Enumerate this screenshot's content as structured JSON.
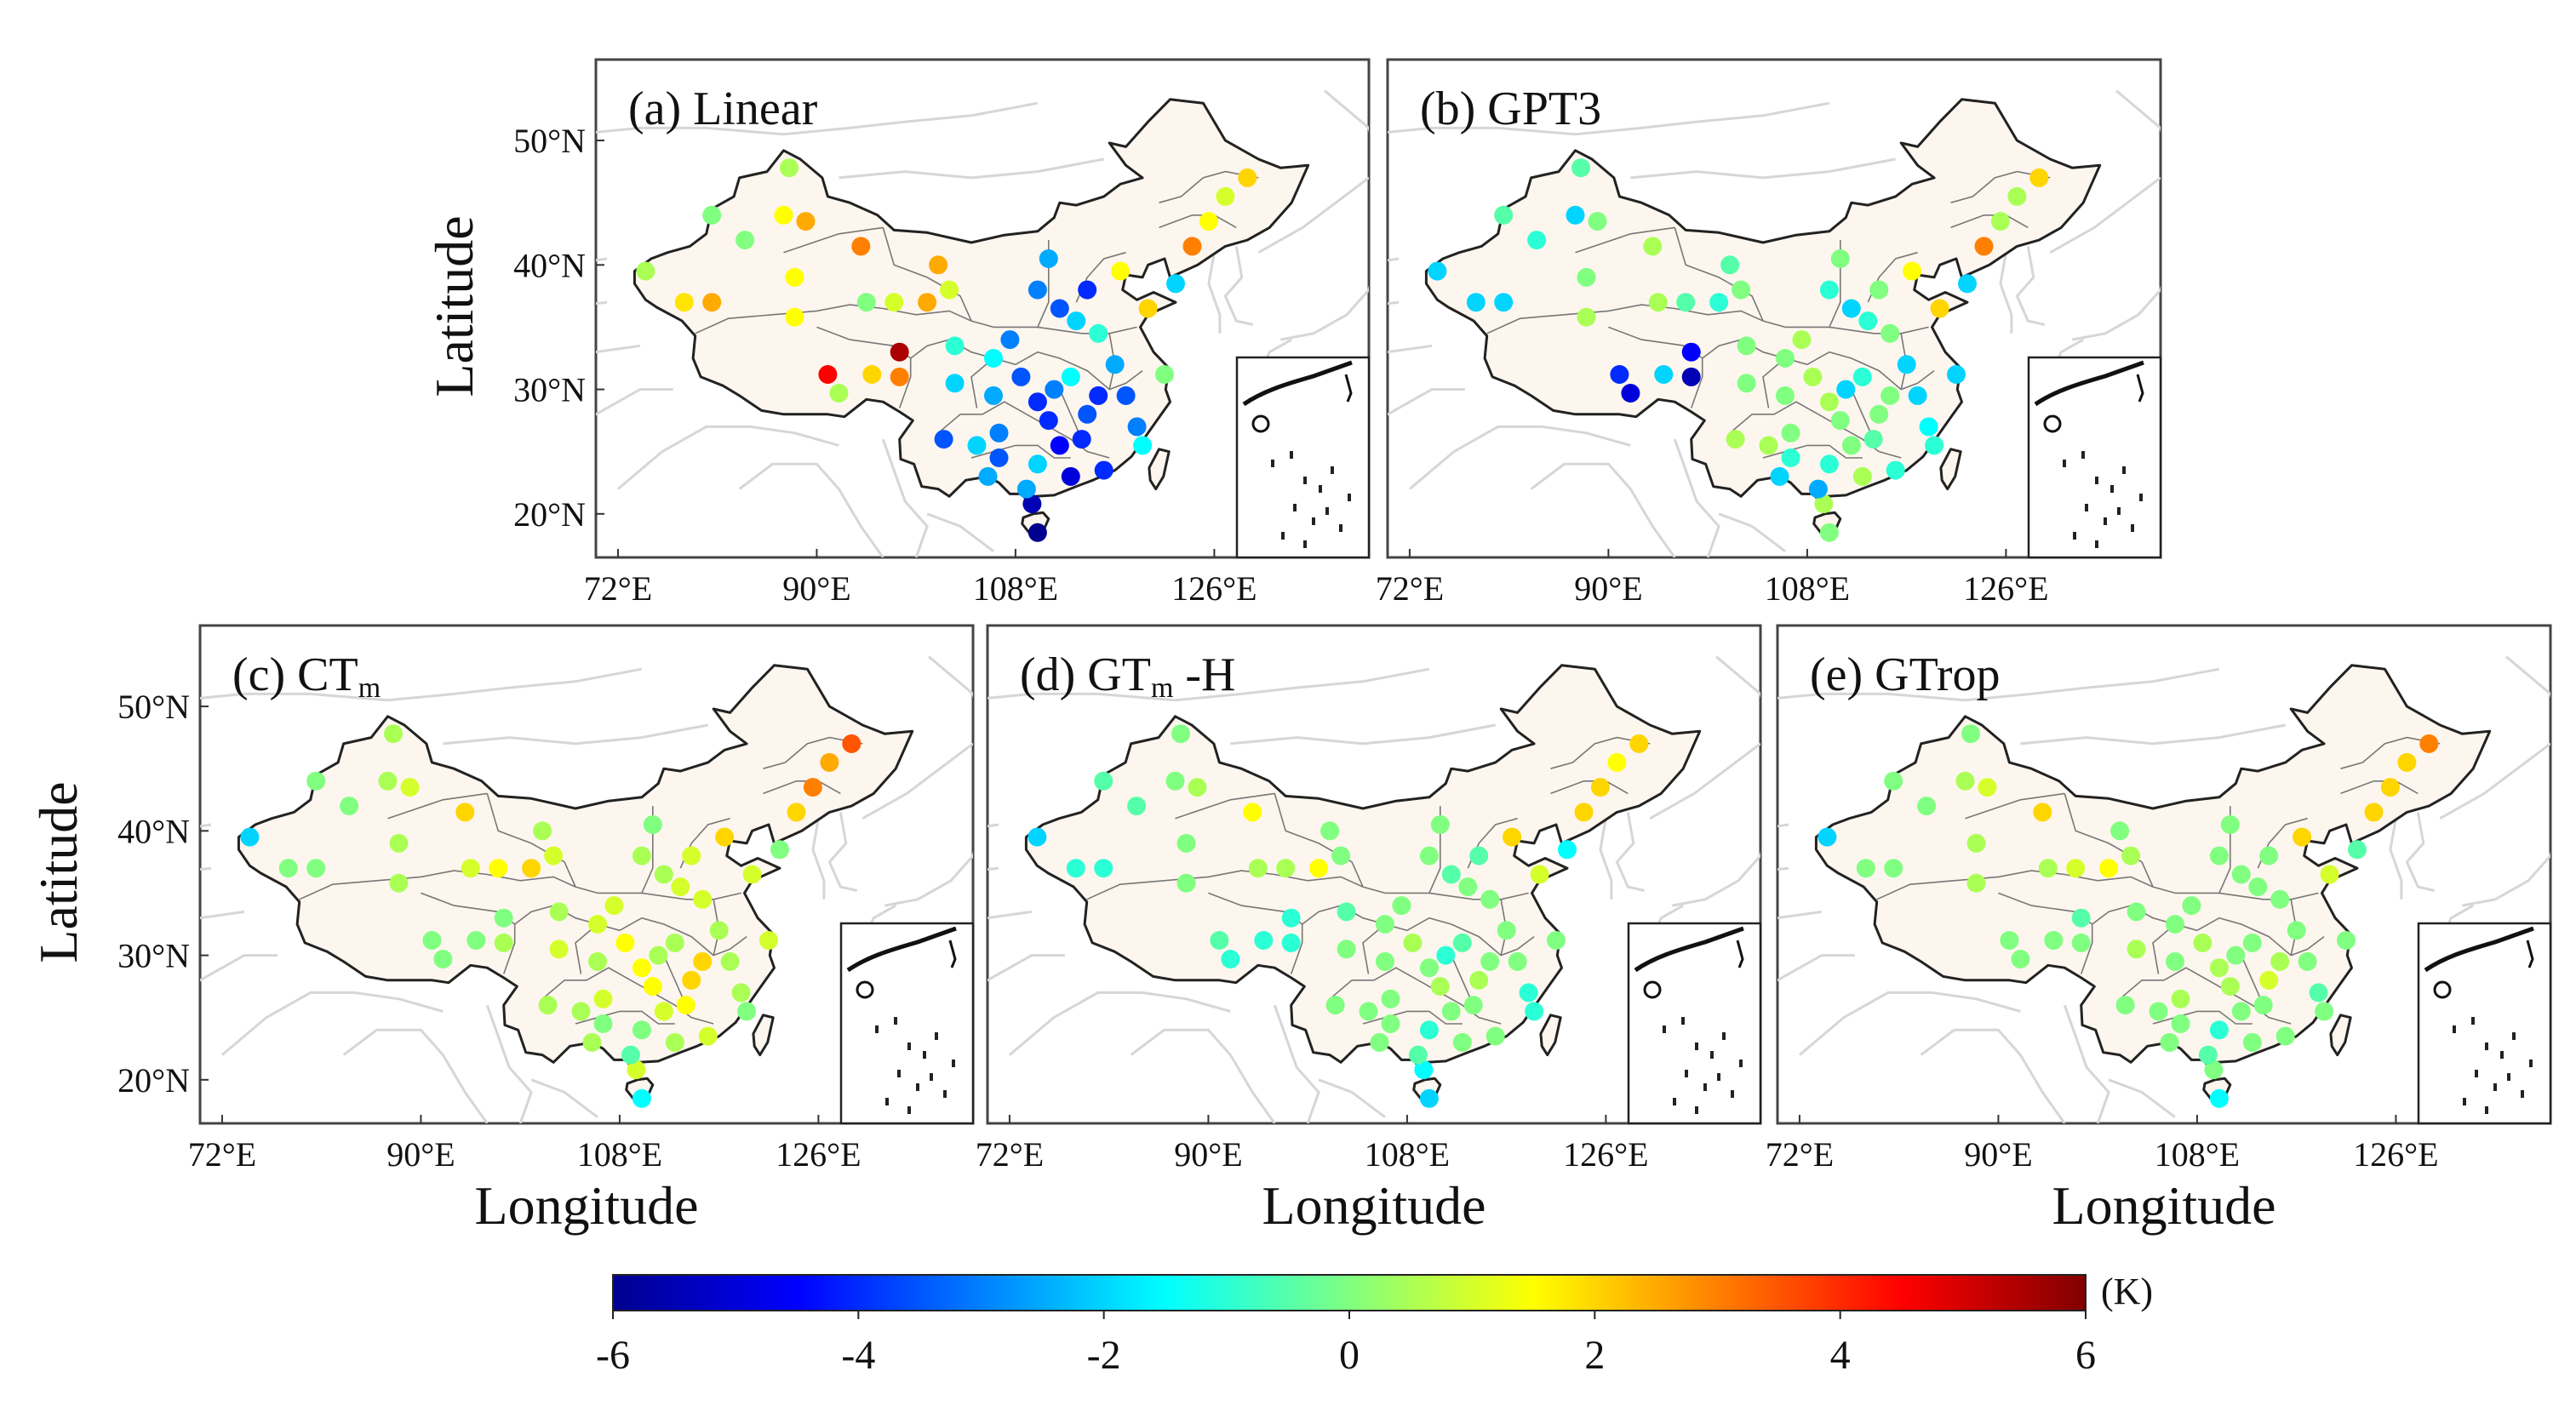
{
  "figure": {
    "axis_label_latitude": "Latitude",
    "axis_label_longitude": "Longitude",
    "lat_ticks": [
      "20°N",
      "30°N",
      "40°N",
      "50°N"
    ],
    "lat_values": [
      20,
      30,
      40,
      50
    ],
    "lon_ticks": [
      "72°E",
      "90°E",
      "108°E",
      "126°E"
    ],
    "lon_values": [
      72,
      90,
      108,
      126
    ],
    "lon_range": [
      70,
      140
    ],
    "lat_range": [
      16.5,
      56.5
    ]
  },
  "panels": [
    {
      "key": "a",
      "label": "(a)  Linear",
      "values": [
        0.5,
        1.8,
        2.5,
        0,
        0,
        0.5,
        1.5,
        2.5,
        1.5,
        1.5,
        3,
        0.5,
        4.5,
        2,
        3,
        5.5,
        0,
        1,
        2.5,
        2.5,
        1,
        -1,
        -2,
        -3.5,
        -2,
        -3,
        -2.5,
        -1.5,
        -3,
        -3.5,
        -4,
        -4,
        -4.5,
        -5,
        -4,
        -3.5,
        -4,
        -5.5,
        -6,
        -2.5,
        -3.5,
        -2.5,
        -2,
        -3,
        -1.5,
        2,
        1,
        1.5,
        -2,
        3,
        0,
        2,
        1.5,
        -3.5,
        -3,
        -1.5,
        -2.5,
        -1,
        -2,
        -3.5,
        -3,
        -4,
        -2.5,
        -4
      ]
    },
    {
      "key": "b",
      "label": "(b)  GPT3",
      "values": [
        -2,
        -2,
        -2,
        -0.5,
        -1,
        -0.5,
        -2,
        0,
        0,
        0.5,
        0.5,
        -5,
        -4,
        -2,
        -5.5,
        -4.5,
        0.5,
        -0.5,
        -1,
        -0.5,
        0,
        0,
        0,
        0.5,
        0.5,
        0,
        0,
        0,
        0.5,
        0.5,
        0.5,
        0,
        0,
        0.5,
        -0.5,
        0,
        0,
        0.5,
        0,
        -2,
        -1,
        -2.5,
        -1,
        -2,
        -1,
        2,
        0.5,
        0.5,
        -2,
        3,
        -2,
        2,
        1.5,
        -2,
        -1.5,
        -1,
        -2,
        0,
        -1,
        -2,
        -1,
        0,
        0,
        -1
      ]
    },
    {
      "key": "c",
      "label": "(c)  CT",
      "label_sub": "m",
      "values": [
        -2,
        0,
        0,
        0,
        0,
        0.5,
        0.5,
        1,
        0.5,
        0.5,
        2,
        0,
        0,
        0,
        0.5,
        0,
        1,
        1.5,
        2,
        0.5,
        1,
        0.5,
        1,
        0.5,
        0.5,
        1,
        0.5,
        1,
        1,
        1.5,
        1.5,
        1.5,
        1,
        0.5,
        1.5,
        2,
        2,
        1,
        -1.5,
        0.5,
        0,
        -0.5,
        0,
        0.5,
        0.5,
        3.5,
        2.5,
        3,
        0,
        2,
        1,
        1,
        2,
        0.5,
        0.5,
        0,
        0.5,
        1,
        1,
        0.5,
        0.5,
        1,
        0,
        1
      ]
    },
    {
      "key": "d",
      "label": "(d)  GT",
      "label_sub": "m",
      "label_suffix": " -H",
      "values": [
        -2,
        -1,
        -1,
        -0.5,
        -0.5,
        0,
        0,
        0.5,
        0,
        0,
        1.5,
        -1,
        -0.5,
        -1,
        -1,
        -1,
        0.5,
        0.5,
        1.5,
        0,
        0,
        -0.5,
        0,
        0,
        0,
        0,
        0,
        0,
        0,
        0.5,
        0,
        0.5,
        0,
        0,
        0,
        0.5,
        0,
        -1.5,
        -2,
        0,
        0,
        -0.5,
        -1,
        -1,
        -0.5,
        2,
        1.5,
        2,
        -1.5,
        2,
        0,
        1,
        2,
        0,
        -1,
        -1,
        0,
        0,
        0,
        -0.5,
        0,
        -0.5,
        0,
        0
      ]
    },
    {
      "key": "e",
      "label": "(e)  GTrop",
      "values": [
        -2,
        0,
        0,
        0,
        0,
        0,
        0.5,
        1,
        0.5,
        0.5,
        2,
        0,
        0,
        0,
        0,
        -0.5,
        0.5,
        1,
        1.5,
        0,
        0.5,
        0,
        0.5,
        0,
        0,
        0.5,
        0,
        0,
        0,
        0.5,
        0.5,
        0.5,
        0,
        0,
        0,
        1,
        0.5,
        0,
        -1.5,
        0,
        0,
        -0.5,
        -1,
        0,
        0,
        3,
        2,
        2,
        -0.5,
        2,
        0,
        1,
        2,
        0,
        -0.5,
        0,
        0,
        0,
        0,
        0,
        0,
        0,
        0,
        0
      ]
    }
  ],
  "colorbar": {
    "ticks": [
      "-6",
      "-4",
      "-2",
      "0",
      "2",
      "4",
      "6"
    ],
    "unit": "(K)",
    "min": -6,
    "max": 6
  }
}
